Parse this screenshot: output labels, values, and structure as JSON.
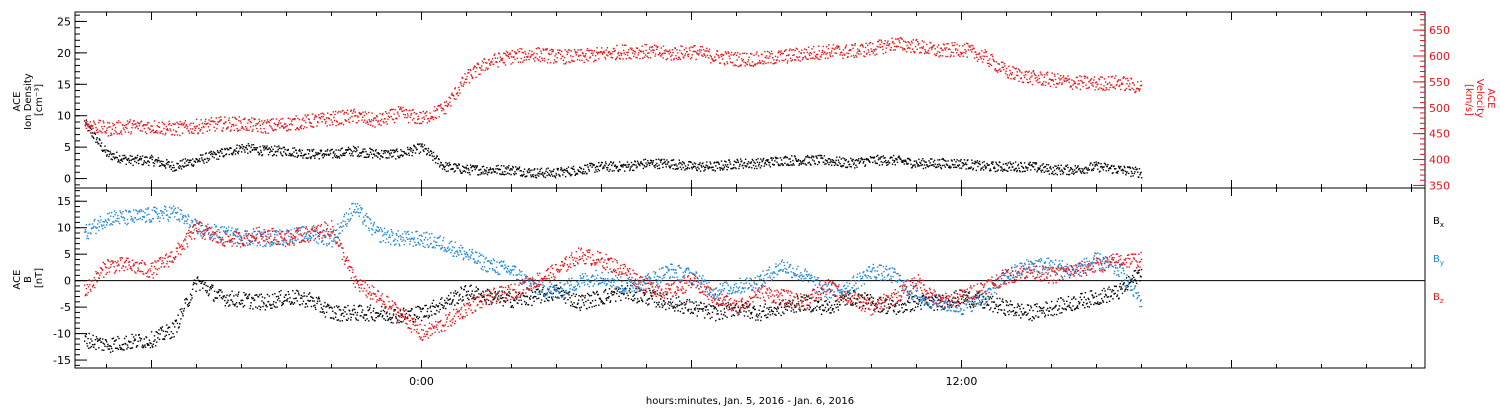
{
  "xaxis": {
    "label": "hours:minutes, Jan.  5, 2016 - Jan.  6, 2016",
    "ticks": [
      {
        "hour": 0,
        "label": "0:00"
      },
      {
        "hour": 12,
        "label": "12:00"
      }
    ],
    "range_hours": [
      -7.7,
      22.3
    ]
  },
  "colors": {
    "black": "#000000",
    "red": "#e8141a",
    "blue": "#1f87d6"
  },
  "chart_data": [
    {
      "type": "scatter",
      "panel": "top",
      "left_axis": {
        "label_lines": [
          "ACE",
          "Ion Density",
          "[cm⁻³]"
        ],
        "ylim": [
          -1.5,
          26.5
        ],
        "ticks": [
          0,
          5,
          10,
          15,
          20,
          25
        ],
        "tick_labels": [
          "0",
          "5",
          "10",
          "15",
          "20",
          "25"
        ]
      },
      "right_axis": {
        "label_lines": [
          "ACE",
          "Velocity",
          "[km/s]"
        ],
        "ylim": [
          345,
          685
        ],
        "ticks": [
          350,
          400,
          450,
          500,
          550,
          600,
          650
        ],
        "tick_labels": [
          "350",
          "400",
          "450",
          "500",
          "550",
          "600",
          "650"
        ]
      },
      "series": [
        {
          "color": "black",
          "axis": "left",
          "x": [
            -7.5,
            -7.0,
            -6.5,
            -6.0,
            -5.5,
            -5.0,
            -4.5,
            -4.0,
            -3.5,
            -3.0,
            -2.5,
            -2.0,
            -1.5,
            -1.0,
            -0.5,
            0.0,
            0.5,
            1.0,
            1.5,
            2.0,
            2.5,
            3.0,
            3.5,
            4.0,
            4.5,
            5.0,
            5.5,
            6.0,
            6.5,
            7.0,
            7.5,
            8.0,
            8.5,
            9.0,
            9.5,
            10.0,
            10.5,
            11.0,
            11.5,
            12.0,
            12.5,
            13.0,
            13.5,
            14.0,
            14.5,
            15.0,
            15.5,
            16.0
          ],
          "y": [
            9,
            4,
            3,
            3,
            2,
            3,
            4,
            5,
            4.5,
            4.5,
            4,
            4,
            4.5,
            4,
            4,
            5,
            2,
            1.5,
            1.5,
            1.5,
            1,
            1,
            1.5,
            2,
            2,
            2.5,
            2.5,
            2,
            2,
            2.5,
            2.5,
            3,
            3,
            3,
            2.5,
            3,
            3,
            2.5,
            2.5,
            2.5,
            2,
            2,
            2,
            1.5,
            1.5,
            2,
            1.5,
            1
          ]
        },
        {
          "color": "red",
          "axis": "right",
          "x": [
            -7.5,
            -7.0,
            -6.5,
            -6.0,
            -5.5,
            -5.0,
            -4.5,
            -4.0,
            -3.5,
            -3.0,
            -2.5,
            -2.0,
            -1.5,
            -1.0,
            -0.5,
            0.0,
            0.5,
            1.0,
            1.5,
            2.0,
            2.5,
            3.0,
            3.5,
            4.0,
            4.5,
            5.0,
            5.5,
            6.0,
            6.5,
            7.0,
            7.5,
            8.0,
            8.5,
            9.0,
            9.5,
            10.0,
            10.5,
            11.0,
            11.5,
            12.0,
            12.5,
            13.0,
            13.5,
            14.0,
            14.5,
            15.0,
            15.5,
            16.0
          ],
          "y": [
            470,
            460,
            465,
            465,
            460,
            465,
            470,
            470,
            465,
            470,
            475,
            480,
            485,
            475,
            490,
            480,
            500,
            560,
            590,
            600,
            605,
            600,
            600,
            605,
            610,
            610,
            605,
            610,
            600,
            595,
            595,
            600,
            605,
            610,
            610,
            615,
            625,
            620,
            610,
            615,
            600,
            570,
            560,
            555,
            550,
            548,
            550,
            540
          ]
        }
      ]
    },
    {
      "type": "scatter",
      "panel": "bottom",
      "left_axis": {
        "label_lines": [
          "ACE",
          "B",
          "[nT]"
        ],
        "ylim": [
          -16.5,
          17.5
        ],
        "ticks": [
          -15,
          -10,
          -5,
          0,
          5,
          10,
          15
        ],
        "tick_labels": [
          "-15",
          "-10",
          "-5",
          "0",
          "5",
          "10",
          "15"
        ]
      },
      "legend": [
        "Bx",
        "By",
        "Bz"
      ],
      "series": [
        {
          "name": "Bx",
          "color": "black",
          "x": [
            -7.5,
            -7.0,
            -6.5,
            -6.0,
            -5.5,
            -5.0,
            -4.5,
            -4.0,
            -3.5,
            -3.0,
            -2.5,
            -2.0,
            -1.5,
            -1.0,
            -0.5,
            0.0,
            0.5,
            1.0,
            1.5,
            2.0,
            2.5,
            3.0,
            3.5,
            4.0,
            4.5,
            5.0,
            5.5,
            6.0,
            6.5,
            7.0,
            7.5,
            8.0,
            8.5,
            9.0,
            9.5,
            10.0,
            10.5,
            11.0,
            11.5,
            12.0,
            12.5,
            13.0,
            13.5,
            14.0,
            14.5,
            15.0,
            15.5,
            16.0
          ],
          "y": [
            -11,
            -12,
            -11.5,
            -11,
            -9,
            0,
            -3,
            -3.5,
            -4,
            -3,
            -3.5,
            -6,
            -6,
            -6,
            -6.5,
            -6,
            -4,
            -2,
            -3,
            -3.5,
            -3,
            -2,
            -4,
            -3,
            -2,
            -3,
            -4,
            -5,
            -6,
            -5,
            -6,
            -5,
            -4,
            -5,
            -3,
            -4,
            -5,
            -4,
            -4,
            -3,
            -4,
            -5,
            -6,
            -5,
            -4,
            -3,
            -2,
            2
          ]
        },
        {
          "name": "By",
          "color": "blue",
          "x": [
            -7.5,
            -7.0,
            -6.5,
            -6.0,
            -5.5,
            -5.0,
            -4.5,
            -4.0,
            -3.5,
            -3.0,
            -2.5,
            -2.0,
            -1.5,
            -1.0,
            -0.5,
            0.0,
            0.5,
            1.0,
            1.5,
            2.0,
            2.5,
            3.0,
            3.5,
            4.0,
            4.5,
            5.0,
            5.5,
            6.0,
            6.5,
            7.0,
            7.5,
            8.0,
            8.5,
            9.0,
            9.5,
            10.0,
            10.5,
            11.0,
            11.5,
            12.0,
            12.5,
            13.0,
            13.5,
            14.0,
            14.5,
            15.0,
            15.5,
            16.0
          ],
          "y": [
            9,
            12,
            12,
            12.5,
            13,
            10,
            9,
            8.5,
            8,
            8.5,
            9,
            8,
            14,
            9,
            8,
            8,
            7,
            5,
            3,
            2,
            -1,
            -2,
            0,
            1,
            -1,
            0,
            2,
            1,
            -2,
            -1,
            0,
            3,
            1,
            -2,
            -1,
            2,
            1,
            -3,
            -4,
            -5,
            -3,
            1,
            3,
            3,
            2,
            4,
            2,
            -4
          ]
        },
        {
          "name": "Bz",
          "color": "red",
          "x": [
            -7.5,
            -7.0,
            -6.5,
            -6.0,
            -5.5,
            -5.0,
            -4.5,
            -4.0,
            -3.5,
            -3.0,
            -2.5,
            -2.0,
            -1.5,
            -1.0,
            -0.5,
            0.0,
            0.5,
            1.0,
            1.5,
            2.0,
            2.5,
            3.0,
            3.5,
            4.0,
            4.5,
            5.0,
            5.5,
            6.0,
            6.5,
            7.0,
            7.5,
            8.0,
            8.5,
            9.0,
            9.5,
            10.0,
            10.5,
            11.0,
            11.5,
            12.0,
            12.5,
            13.0,
            13.5,
            14.0,
            14.5,
            15.0,
            15.5,
            16.0
          ],
          "y": [
            -2,
            3,
            3,
            2,
            5,
            10,
            8,
            8,
            9,
            8,
            9,
            10,
            0,
            -3,
            -6,
            -10,
            -8,
            -5,
            -3,
            -2,
            0,
            2,
            5,
            4,
            2,
            -1,
            -2,
            0,
            -3,
            -5,
            -2,
            -3,
            -4,
            -1,
            -3,
            -5,
            -3,
            0,
            -4,
            -3,
            -1,
            1,
            2,
            1,
            2,
            3,
            4,
            4
          ]
        }
      ]
    }
  ]
}
